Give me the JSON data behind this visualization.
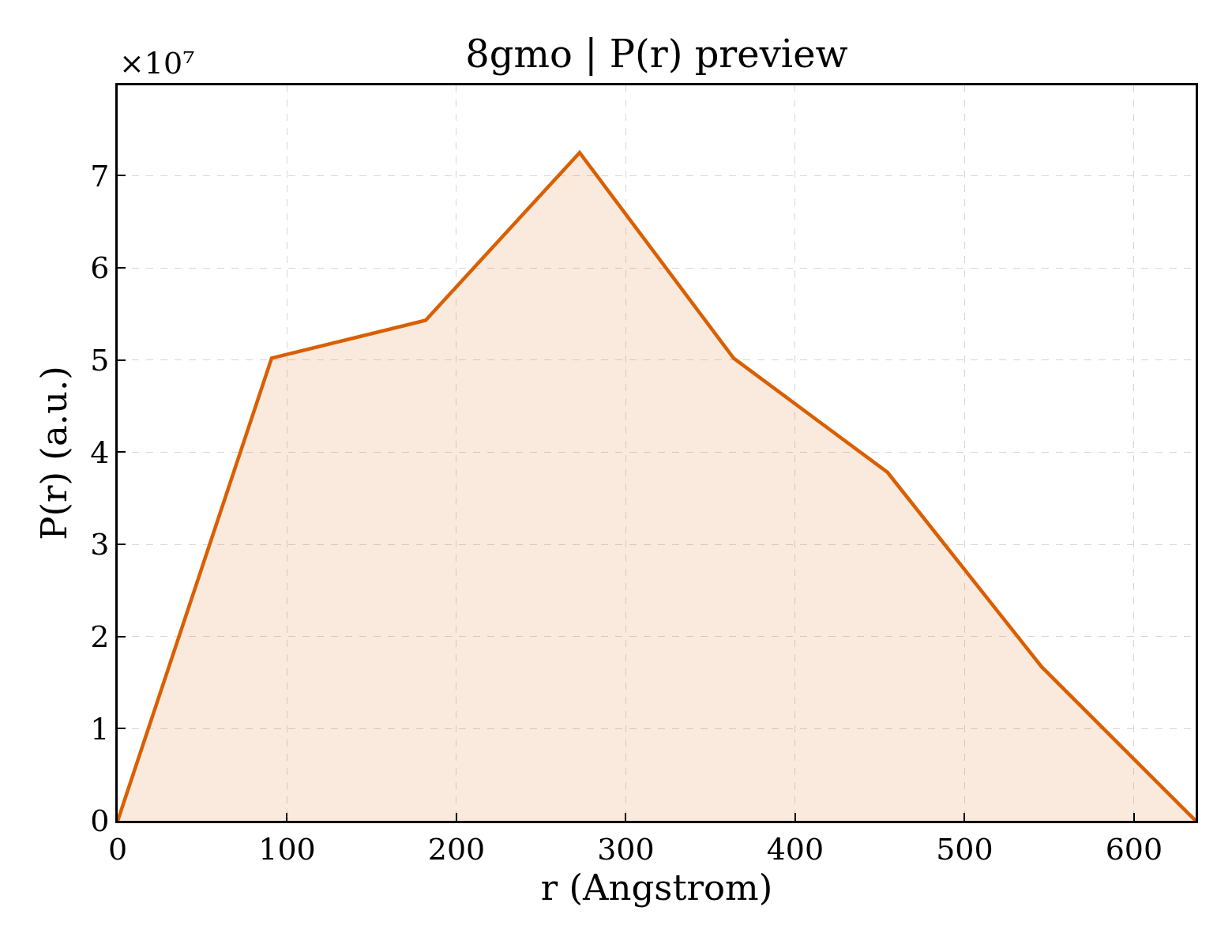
{
  "chart_data": {
    "type": "area",
    "title": "8gmo | P(r) preview",
    "xlabel": "r (Angstrom)",
    "ylabel": "P(r) (a.u.)",
    "annotations": [
      "×10⁷"
    ],
    "x": [
      0,
      90.9,
      181.8,
      272.7,
      363.6,
      454.5,
      545.5,
      636.4
    ],
    "series": [
      {
        "color": "#d95f02",
        "values": [
          0,
          5.02,
          5.43,
          7.25,
          5.02,
          3.78,
          1.67,
          0
        ]
      }
    ],
    "xlim": [
      0,
      636.4
    ],
    "xticks": [
      0,
      100,
      200,
      300,
      400,
      500,
      600
    ],
    "ylim": [
      0,
      7.98
    ],
    "yticks": [
      0,
      1,
      2,
      3,
      4,
      5,
      6,
      7
    ],
    "grid": true
  }
}
